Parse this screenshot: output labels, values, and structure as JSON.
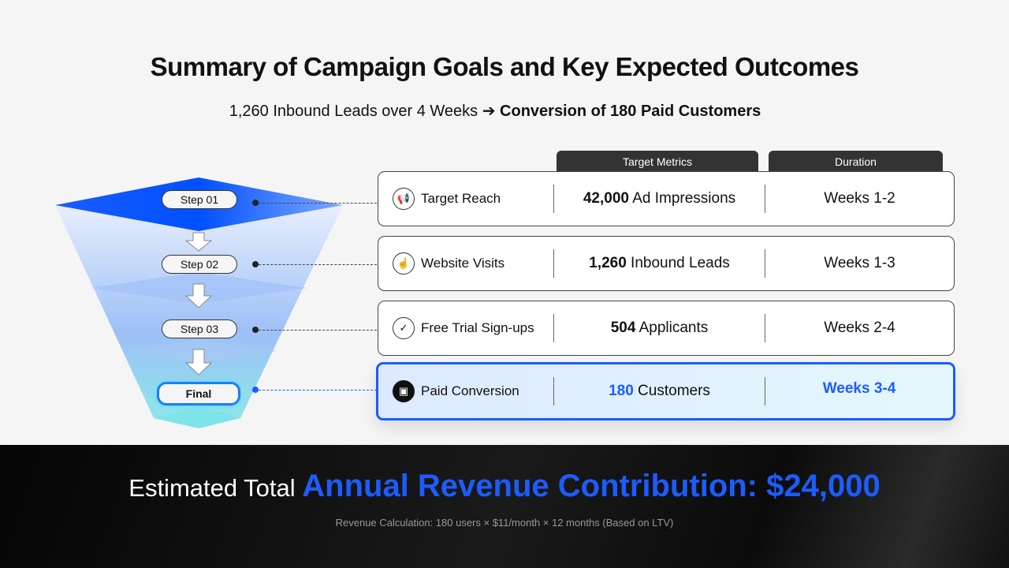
{
  "title": "Summary of Campaign Goals and Key Expected Outcomes",
  "subtitle": {
    "left": "1,260 Inbound Leads over 4 Weeks ➔ ",
    "right": "Conversion of 180 Paid Customers"
  },
  "headers": {
    "metrics": "Target Metrics",
    "duration": "Duration"
  },
  "steps": [
    "Step 01",
    "Step 02",
    "Step 03",
    "Final"
  ],
  "rows": [
    {
      "icon": "megaphone-icon",
      "label": "Target Reach",
      "num": "42,000",
      "unit": " Ad Impressions",
      "duration": "Weeks 1-2"
    },
    {
      "icon": "pointer-click-icon",
      "label": "Website Visits",
      "num": "1,260",
      "unit": " Inbound Leads",
      "duration": "Weeks 1-3"
    },
    {
      "icon": "clipboard-check-icon",
      "label": "Free Trial Sign-ups",
      "num": "504",
      "unit": " Applicants",
      "duration": "Weeks 2-4"
    },
    {
      "icon": "money-icon",
      "label": "Paid Conversion",
      "num": "180",
      "unit": " Customers",
      "duration": "Weeks 3-4"
    }
  ],
  "revenue": {
    "prefix": "Estimated Total ",
    "highlight": "Annual Revenue Contribution: $24,000",
    "calc": "Revenue Calculation: 180 users × $11/month × 12 months (Based on LTV)"
  },
  "colors": {
    "accent": "#1c5cff",
    "cyan": "#3ee0e8"
  }
}
